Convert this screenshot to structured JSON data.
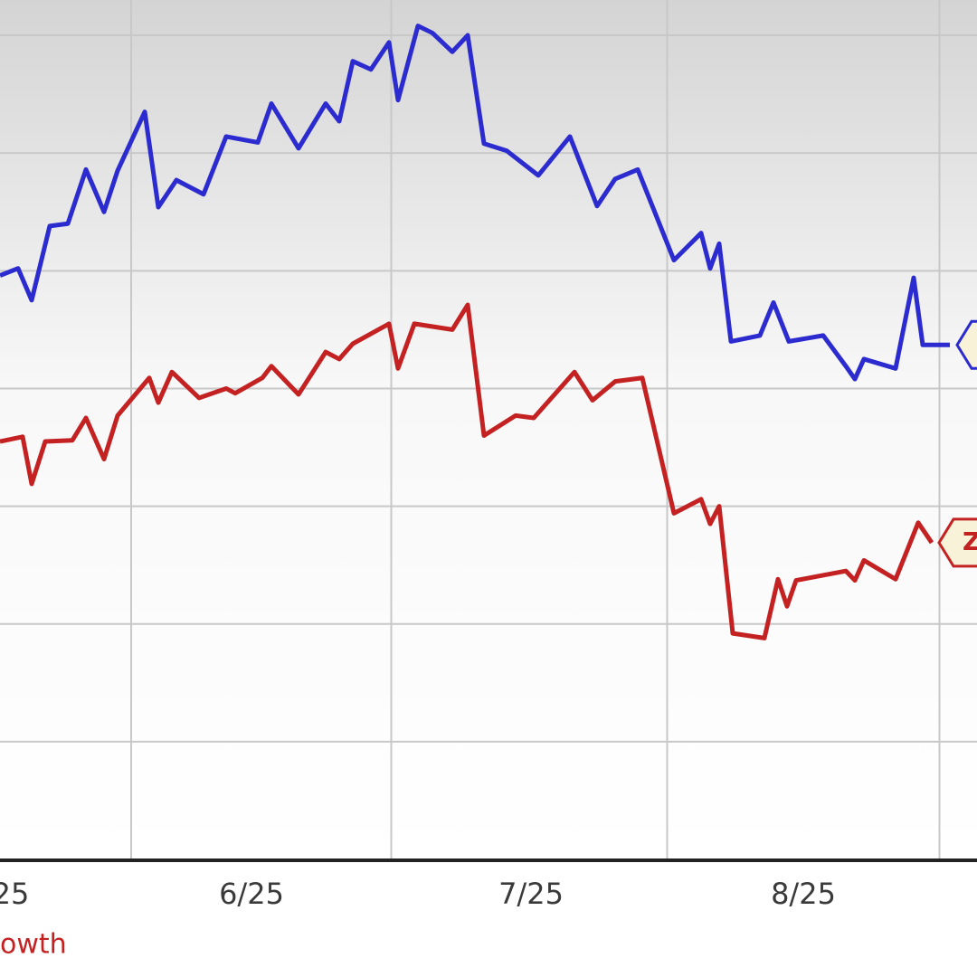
{
  "chart_data": {
    "type": "line",
    "xlim": [
      0,
      108
    ],
    "ylim": [
      0,
      7.3
    ],
    "yticks": [
      1,
      2,
      3,
      4,
      5,
      6,
      7
    ],
    "xticks": [
      {
        "value": 1.2,
        "label": "25"
      },
      {
        "value": 27.8,
        "label": "6/25"
      },
      {
        "value": 58.7,
        "label": "7/25"
      },
      {
        "value": 88.8,
        "label": "8/25"
      }
    ],
    "grid": true,
    "series": [
      {
        "color": "#2b2bd0",
        "x": [
          0,
          2,
          3.5,
          5.5,
          7.5,
          9.5,
          11.5,
          13,
          16,
          17.5,
          19.5,
          22.5,
          25,
          28.5,
          30,
          33,
          36,
          37.5,
          39,
          41,
          43,
          44,
          46.2,
          47.8,
          50,
          51.7,
          53.5,
          56,
          59.5,
          63,
          66,
          68,
          70.5,
          74.5,
          77.5,
          78.5,
          79.5,
          80.8,
          84,
          85.5,
          87.2,
          91,
          93.5,
          94.5,
          95.5,
          99,
          101,
          102,
          105
        ],
        "values": [
          4.96,
          5.02,
          4.75,
          5.38,
          5.4,
          5.86,
          5.5,
          5.85,
          6.35,
          5.54,
          5.77,
          5.65,
          6.14,
          6.09,
          6.42,
          6.04,
          6.42,
          6.27,
          6.78,
          6.71,
          6.94,
          6.45,
          7.08,
          7.02,
          6.86,
          7.0,
          6.08,
          6.02,
          5.81,
          6.14,
          5.55,
          5.78,
          5.86,
          5.09,
          5.32,
          5.02,
          5.23,
          4.4,
          4.45,
          4.73,
          4.4,
          4.45,
          4.19,
          4.08,
          4.25,
          4.17,
          4.94,
          4.37,
          4.37
        ]
      },
      {
        "name": "owth",
        "color": "#c42222",
        "tag": "Z",
        "x": [
          0,
          2.5,
          3.5,
          5,
          8,
          9.5,
          11.5,
          13,
          16.5,
          17.5,
          19,
          22,
          25,
          26,
          29,
          30,
          33,
          36,
          37.5,
          39,
          43,
          44,
          45.8,
          50,
          51.7,
          53.5,
          57,
          59,
          63.5,
          65.5,
          68,
          71,
          74.5,
          77.5,
          78.5,
          79.5,
          81,
          84.5,
          86,
          87,
          88,
          93.5,
          94.5,
          95.5,
          99,
          101.5,
          103
        ],
        "values": [
          3.55,
          3.59,
          3.19,
          3.55,
          3.56,
          3.75,
          3.4,
          3.77,
          4.09,
          3.88,
          4.14,
          3.92,
          4.0,
          3.96,
          4.09,
          4.19,
          3.95,
          4.31,
          4.25,
          4.38,
          4.55,
          4.17,
          4.55,
          4.5,
          4.71,
          3.6,
          3.77,
          3.75,
          4.14,
          3.9,
          4.06,
          4.09,
          2.94,
          3.06,
          2.85,
          3.0,
          1.92,
          1.88,
          2.38,
          2.15,
          2.37,
          2.45,
          2.37,
          2.54,
          2.38,
          2.86,
          2.69
        ]
      }
    ]
  }
}
